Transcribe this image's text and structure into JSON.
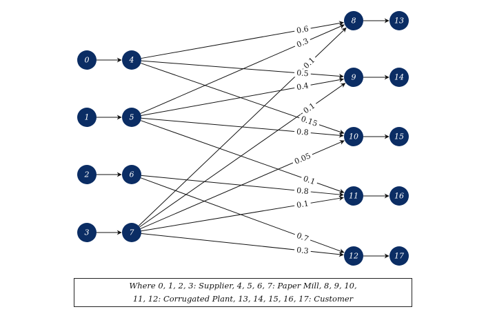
{
  "diagram": {
    "nodes": [
      {
        "id": "0",
        "label": "0",
        "role": "supplier"
      },
      {
        "id": "1",
        "label": "1",
        "role": "supplier"
      },
      {
        "id": "2",
        "label": "2",
        "role": "supplier"
      },
      {
        "id": "3",
        "label": "3",
        "role": "supplier"
      },
      {
        "id": "4",
        "label": "4",
        "role": "paper-mill"
      },
      {
        "id": "5",
        "label": "5",
        "role": "paper-mill"
      },
      {
        "id": "6",
        "label": "6",
        "role": "paper-mill"
      },
      {
        "id": "7",
        "label": "7",
        "role": "paper-mill"
      },
      {
        "id": "8",
        "label": "8",
        "role": "corrugated-plant"
      },
      {
        "id": "9",
        "label": "9",
        "role": "corrugated-plant"
      },
      {
        "id": "10",
        "label": "10",
        "role": "corrugated-plant"
      },
      {
        "id": "11",
        "label": "11",
        "role": "corrugated-plant"
      },
      {
        "id": "12",
        "label": "12",
        "role": "corrugated-plant"
      },
      {
        "id": "13",
        "label": "13",
        "role": "customer"
      },
      {
        "id": "14",
        "label": "14",
        "role": "customer"
      },
      {
        "id": "15",
        "label": "15",
        "role": "customer"
      },
      {
        "id": "16",
        "label": "16",
        "role": "customer"
      },
      {
        "id": "17",
        "label": "17",
        "role": "customer"
      }
    ],
    "edges": [
      {
        "from": "0",
        "to": "4",
        "label": ""
      },
      {
        "from": "1",
        "to": "5",
        "label": ""
      },
      {
        "from": "2",
        "to": "6",
        "label": ""
      },
      {
        "from": "3",
        "to": "7",
        "label": ""
      },
      {
        "from": "4",
        "to": "8",
        "label": "0.6"
      },
      {
        "from": "5",
        "to": "8",
        "label": "0.3"
      },
      {
        "from": "7",
        "to": "8",
        "label": "0.1"
      },
      {
        "from": "4",
        "to": "9",
        "label": "0.5"
      },
      {
        "from": "5",
        "to": "9",
        "label": "0.4"
      },
      {
        "from": "7",
        "to": "9",
        "label": "0.1"
      },
      {
        "from": "4",
        "to": "10",
        "label": "0.15"
      },
      {
        "from": "5",
        "to": "10",
        "label": "0.8"
      },
      {
        "from": "7",
        "to": "10",
        "label": "0.05"
      },
      {
        "from": "5",
        "to": "11",
        "label": "0.1"
      },
      {
        "from": "6",
        "to": "11",
        "label": "0.8"
      },
      {
        "from": "7",
        "to": "11",
        "label": "0.1"
      },
      {
        "from": "6",
        "to": "12",
        "label": "0.7"
      },
      {
        "from": "7",
        "to": "12",
        "label": "0.3"
      },
      {
        "from": "8",
        "to": "13",
        "label": ""
      },
      {
        "from": "9",
        "to": "14",
        "label": ""
      },
      {
        "from": "10",
        "to": "15",
        "label": ""
      },
      {
        "from": "11",
        "to": "16",
        "label": ""
      },
      {
        "from": "12",
        "to": "17",
        "label": ""
      }
    ]
  },
  "legend": {
    "line1": "Where 0, 1, 2, 3: Supplier, 4, 5, 6, 7: Paper Mill, 8, 9, 10,",
    "line2": "11, 12: Corrugated Plant, 13, 14, 15, 16, 17: Customer"
  },
  "colors": {
    "node_fill": "#0b2d64",
    "node_text": "#ffffff",
    "edge": "#111111"
  }
}
